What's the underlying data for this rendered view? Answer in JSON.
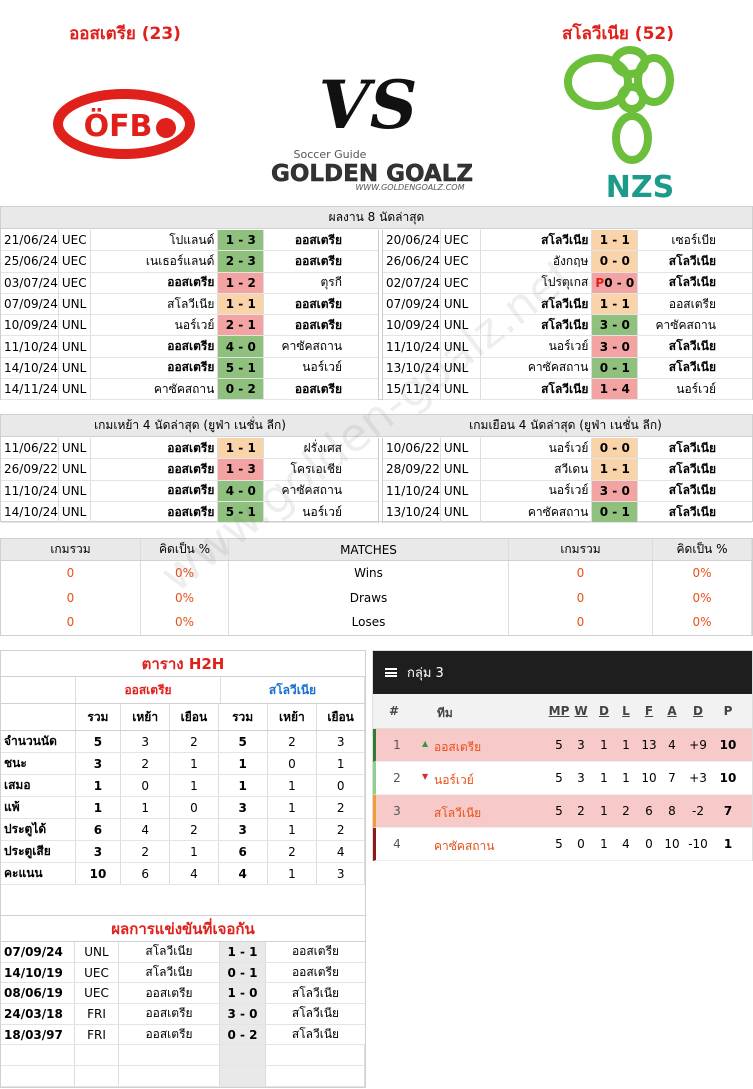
{
  "header": {
    "home": {
      "name": "ออสเตรีย",
      "rank": "(23)"
    },
    "away": {
      "name": "สโลวีเนีย",
      "rank": "(52)"
    },
    "vs": "VS",
    "logo_home": "ÖFB",
    "logo_away": "NZS",
    "brand": {
      "tagline": "Soccer Guide",
      "name": "GOLDEN GOALZ",
      "url": "WWW.GOLDENGOALZ.COM"
    }
  },
  "watermark": "www.golden-goalz.net",
  "recent": {
    "title": "ผลงาน 8 นัดล่าสุด",
    "left": [
      {
        "date": "21/06/24",
        "comp": "UEC",
        "home": "โปแลนด์",
        "score": "1 - 3",
        "away": "ออสเตรีย",
        "color": "#8fc07e"
      },
      {
        "date": "25/06/24",
        "comp": "UEC",
        "home": "เนเธอร์แลนด์",
        "score": "2 - 3",
        "away": "ออสเตรีย",
        "color": "#8fc07e"
      },
      {
        "date": "03/07/24",
        "comp": "UEC",
        "home": "ออสเตรีย",
        "score": "1 - 2",
        "away": "ตุรกี",
        "color": "#f4a3a3"
      },
      {
        "date": "07/09/24",
        "comp": "UNL",
        "home": "สโลวีเนีย",
        "score": "1 - 1",
        "away": "ออสเตรีย",
        "color": "#f9d3aa"
      },
      {
        "date": "10/09/24",
        "comp": "UNL",
        "home": "นอร์เวย์",
        "score": "2 - 1",
        "away": "ออสเตรีย",
        "color": "#f4a3a3"
      },
      {
        "date": "11/10/24",
        "comp": "UNL",
        "home": "ออสเตรีย",
        "score": "4 - 0",
        "away": "คาซัคสถาน",
        "color": "#8fc07e"
      },
      {
        "date": "14/10/24",
        "comp": "UNL",
        "home": "ออสเตรีย",
        "score": "5 - 1",
        "away": "นอร์เวย์",
        "color": "#8fc07e"
      },
      {
        "date": "14/11/24",
        "comp": "UNL",
        "home": "คาซัคสถาน",
        "score": "0 - 2",
        "away": "ออสเตรีย",
        "color": "#8fc07e"
      }
    ],
    "right": [
      {
        "date": "20/06/24",
        "comp": "UEC",
        "home": "สโลวีเนีย",
        "score": "1 - 1",
        "away": "เซอร์เบีย",
        "color": "#f9d3aa"
      },
      {
        "date": "26/06/24",
        "comp": "UEC",
        "home": "อังกฤษ",
        "score": "0 - 0",
        "away": "สโลวีเนีย",
        "color": "#f9d3aa"
      },
      {
        "date": "02/07/24",
        "comp": "UEC",
        "home": "โปรตุเกส",
        "pen": "P",
        "score": "0 - 0",
        "away": "สโลวีเนีย",
        "color": "#f4a3a3"
      },
      {
        "date": "07/09/24",
        "comp": "UNL",
        "home": "สโลวีเนีย",
        "score": "1 - 1",
        "away": "ออสเตรีย",
        "color": "#f9d3aa"
      },
      {
        "date": "10/09/24",
        "comp": "UNL",
        "home": "สโลวีเนีย",
        "score": "3 - 0",
        "away": "คาซัคสถาน",
        "color": "#8fc07e"
      },
      {
        "date": "11/10/24",
        "comp": "UNL",
        "home": "นอร์เวย์",
        "score": "3 - 0",
        "away": "สโลวีเนีย",
        "color": "#f4a3a3"
      },
      {
        "date": "13/10/24",
        "comp": "UNL",
        "home": "คาซัคสถาน",
        "score": "0 - 1",
        "away": "สโลวีเนีย",
        "color": "#8fc07e"
      },
      {
        "date": "15/11/24",
        "comp": "UNL",
        "home": "สโลวีเนีย",
        "score": "1 - 4",
        "away": "นอร์เวย์",
        "color": "#f4a3a3"
      }
    ]
  },
  "last4": {
    "left_title": "เกมเหย้า 4 นัดล่าสุด (ยูฟ่า เนชั่น ลีก)",
    "right_title": "เกมเยือน 4 นัดล่าสุด (ยูฟ่า เนชั่น ลีก)",
    "left": [
      {
        "date": "11/06/22",
        "comp": "UNL",
        "home": "ออสเตรีย",
        "score": "1 - 1",
        "away": "ฝรั่งเศส",
        "color": "#f9d3aa"
      },
      {
        "date": "26/09/22",
        "comp": "UNL",
        "home": "ออสเตรีย",
        "score": "1 - 3",
        "away": "โครเอเชีย",
        "color": "#f4a3a3"
      },
      {
        "date": "11/10/24",
        "comp": "UNL",
        "home": "ออสเตรีย",
        "score": "4 - 0",
        "away": "คาซัคสถาน",
        "color": "#8fc07e"
      },
      {
        "date": "14/10/24",
        "comp": "UNL",
        "home": "ออสเตรีย",
        "score": "5 - 1",
        "away": "นอร์เวย์",
        "color": "#8fc07e"
      }
    ],
    "right": [
      {
        "date": "10/06/22",
        "comp": "UNL",
        "home": "นอร์เวย์",
        "score": "0 - 0",
        "away": "สโลวีเนีย",
        "color": "#f9d3aa"
      },
      {
        "date": "28/09/22",
        "comp": "UNL",
        "home": "สวีเดน",
        "score": "1 - 1",
        "away": "สโลวีเนีย",
        "color": "#f9d3aa"
      },
      {
        "date": "11/10/24",
        "comp": "UNL",
        "home": "นอร์เวย์",
        "score": "3 - 0",
        "away": "สโลวีเนีย",
        "color": "#f4a3a3"
      },
      {
        "date": "13/10/24",
        "comp": "UNL",
        "home": "คาซัคสถาน",
        "score": "0 - 1",
        "away": "สโลวีเนีย",
        "color": "#8fc07e"
      }
    ]
  },
  "summary": {
    "columns": [
      "เกมรวม",
      "คิดเป็น %",
      "MATCHES",
      "เกมรวม",
      "คิดเป็น %"
    ],
    "rows": [
      [
        "0",
        "0%",
        "Wins",
        "0",
        "0%"
      ],
      [
        "0",
        "0%",
        "Draws",
        "0",
        "0%"
      ],
      [
        "0",
        "0%",
        "Loses",
        "0",
        "0%"
      ]
    ]
  },
  "h2h_table": {
    "title": "ตาราง H2H",
    "teams": [
      "ออสเตรีย",
      "สโลวีเนีย"
    ],
    "sub": [
      "รวม",
      "เหย้า",
      "เยือน"
    ],
    "rows": [
      {
        "label": "จำนวนนัด",
        "values": [
          "5",
          "3",
          "2",
          "5",
          "2",
          "3"
        ]
      },
      {
        "label": "ชนะ",
        "values": [
          "3",
          "2",
          "1",
          "1",
          "0",
          "1"
        ]
      },
      {
        "label": "เสมอ",
        "values": [
          "1",
          "0",
          "1",
          "1",
          "1",
          "0"
        ]
      },
      {
        "label": "แพ้",
        "values": [
          "1",
          "1",
          "0",
          "3",
          "1",
          "2"
        ]
      },
      {
        "label": "ประตูได้",
        "values": [
          "6",
          "4",
          "2",
          "3",
          "1",
          "2"
        ]
      },
      {
        "label": "ประตูเสีย",
        "values": [
          "3",
          "2",
          "1",
          "6",
          "2",
          "4"
        ]
      },
      {
        "label": "คะแนน",
        "values": [
          "10",
          "6",
          "4",
          "4",
          "1",
          "3"
        ]
      }
    ]
  },
  "h2h_results": {
    "title": "ผลการแข่งขันที่เจอกัน",
    "rows": [
      {
        "date": "07/09/24",
        "comp": "UNL",
        "home": "สโลวีเนีย",
        "score": "1 - 1",
        "away": "ออสเตรีย"
      },
      {
        "date": "14/10/19",
        "comp": "UEC",
        "home": "สโลวีเนีย",
        "score": "0 - 1",
        "away": "ออสเตรีย"
      },
      {
        "date": "08/06/19",
        "comp": "UEC",
        "home": "ออสเตรีย",
        "score": "1 - 0",
        "away": "สโลวีเนีย"
      },
      {
        "date": "24/03/18",
        "comp": "FRI",
        "home": "ออสเตรีย",
        "score": "3 - 0",
        "away": "สโลวีเนีย"
      },
      {
        "date": "18/03/97",
        "comp": "FRI",
        "home": "ออสเตรีย",
        "score": "0 - 2",
        "away": "สโลวีเนีย"
      }
    ]
  },
  "group": {
    "title": "กลุ่ม 3",
    "columns": [
      "#",
      "ทีม",
      "MP",
      "W",
      "D",
      "L",
      "F",
      "A",
      "D",
      "P"
    ],
    "rows": [
      {
        "pos": "1",
        "trend": "▲",
        "trend_color": "#2e9e3a",
        "team": "ออสเตรีย",
        "stats": [
          "5",
          "3",
          "1",
          "1",
          "13",
          "4",
          "+9",
          "10"
        ],
        "bg": "#f8c9c9",
        "border": "#2e7d32"
      },
      {
        "pos": "2",
        "trend": "▼",
        "trend_color": "#d32f2f",
        "team": "นอร์เวย์",
        "stats": [
          "5",
          "3",
          "1",
          "1",
          "10",
          "7",
          "+3",
          "10"
        ],
        "bg": "#ffffff",
        "border": "#8fd08f"
      },
      {
        "pos": "3",
        "trend": "",
        "trend_color": "#000",
        "team": "สโลวีเนีย",
        "stats": [
          "5",
          "2",
          "1",
          "2",
          "6",
          "8",
          "-2",
          "7"
        ],
        "bg": "#f8c9c9",
        "border": "#f39c33"
      },
      {
        "pos": "4",
        "trend": "",
        "trend_color": "#000",
        "team": "คาซัคสถาน",
        "stats": [
          "5",
          "0",
          "1",
          "4",
          "0",
          "10",
          "-10",
          "1"
        ],
        "bg": "#ffffff",
        "border": "#8b1a1a"
      }
    ]
  }
}
